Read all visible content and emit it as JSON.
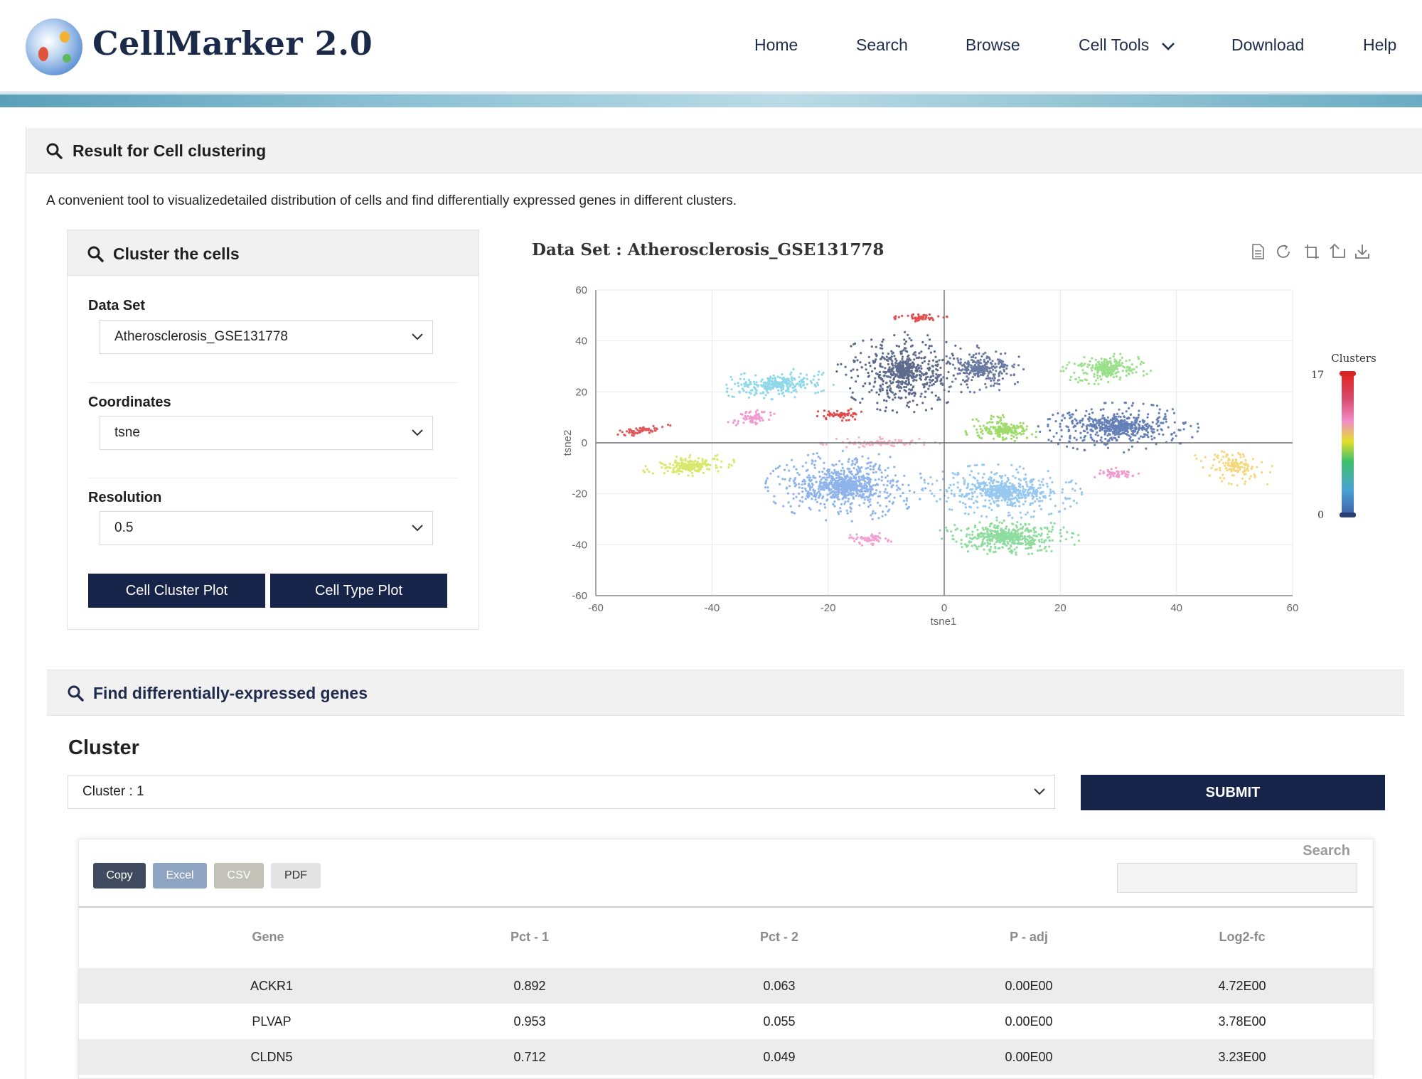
{
  "brand": {
    "name": "CellMarker 2.0"
  },
  "nav": {
    "items": [
      "Home",
      "Search",
      "Browse",
      "Cell Tools",
      "Download",
      "Help"
    ]
  },
  "result": {
    "title": "Result for Cell clustering",
    "description": "A convenient tool to visualizedetailed distribution of cells and find differentially expressed genes in different clusters."
  },
  "cluster_panel": {
    "title": "Cluster the cells",
    "dataset_label": "Data Set",
    "dataset_value": "Atherosclerosis_GSE131778",
    "coordinates_label": "Coordinates",
    "coordinates_value": "tsne",
    "resolution_label": "Resolution",
    "resolution_value": "0.5",
    "btn_cluster_plot": "Cell Cluster Plot",
    "btn_type_plot": "Cell Type Plot"
  },
  "chart_title": "Data Set : Atherosclerosis_GSE131778",
  "chart_data": {
    "type": "scatter",
    "title": "Data Set : Atherosclerosis_GSE131778",
    "xlabel": "tsne1",
    "ylabel": "tsne2",
    "xlim": [
      -60,
      60
    ],
    "ylim": [
      -60,
      60
    ],
    "x_ticks": [
      "-60",
      "-40",
      "-20",
      "0",
      "20",
      "40",
      "60"
    ],
    "y_ticks": [
      "60",
      "40",
      "20",
      "0",
      "-20",
      "-40",
      "-60"
    ],
    "grid": true,
    "legend": {
      "title": "Clusters",
      "min": "0",
      "max": "17",
      "placement": "right"
    },
    "clusters": [
      {
        "color": "#e0595a",
        "cx": -52,
        "cy": 5,
        "rx": 5.5,
        "ry": 1.5,
        "rot": 25,
        "n": 70
      },
      {
        "color": "#d9e86a",
        "cx": -44,
        "cy": -9,
        "rx": 7,
        "ry": 3.5,
        "rot": 15,
        "n": 220
      },
      {
        "color": "#8fd8e8",
        "cx": -29,
        "cy": 23,
        "rx": 9,
        "ry": 5,
        "rot": 10,
        "n": 320
      },
      {
        "color": "#f29ad0",
        "cx": -33,
        "cy": 10,
        "rx": 4,
        "ry": 3,
        "rot": 20,
        "n": 80
      },
      {
        "color": "#e24b4b",
        "cx": -18,
        "cy": 11,
        "rx": 4.5,
        "ry": 2,
        "rot": 5,
        "n": 70
      },
      {
        "color": "#5d6b8c",
        "cx": -7,
        "cy": 28,
        "rx": 10,
        "ry": 14,
        "rot": 0,
        "n": 650
      },
      {
        "color": "#e44f4f",
        "cx": -4,
        "cy": 49,
        "rx": 4,
        "ry": 1.8,
        "rot": 0,
        "n": 60
      },
      {
        "color": "#6b7aa3",
        "cx": 6,
        "cy": 29,
        "rx": 7,
        "ry": 8,
        "rot": 0,
        "n": 300
      },
      {
        "color": "#9fdb6a",
        "cx": 10,
        "cy": 5,
        "rx": 5.5,
        "ry": 6,
        "rot": 0,
        "n": 230
      },
      {
        "color": "#9be08a",
        "cx": 28,
        "cy": 29,
        "rx": 7,
        "ry": 5,
        "rot": 15,
        "n": 280
      },
      {
        "color": "#6680b8",
        "cx": 30,
        "cy": 6,
        "rx": 12,
        "ry": 8.5,
        "rot": 0,
        "n": 650
      },
      {
        "color": "#f29ad0",
        "cx": 29,
        "cy": -12,
        "rx": 5,
        "ry": 2,
        "rot": -10,
        "n": 60
      },
      {
        "color": "#f5d77c",
        "cx": 50,
        "cy": -9,
        "rx": 5,
        "ry": 8,
        "rot": 35,
        "n": 150
      },
      {
        "color": "#8fb4ec",
        "cx": -17,
        "cy": -17,
        "rx": 12,
        "ry": 12,
        "rot": 0,
        "n": 900
      },
      {
        "color": "#f4b6c4",
        "cx": -11,
        "cy": 0,
        "rx": 9,
        "ry": 2,
        "rot": 0,
        "n": 120
      },
      {
        "color": "#97c8ef",
        "cx": 10,
        "cy": -19,
        "rx": 12,
        "ry": 9,
        "rot": -10,
        "n": 650
      },
      {
        "color": "#8fdc9f",
        "cx": 11,
        "cy": -37,
        "rx": 11,
        "ry": 6,
        "rot": 0,
        "n": 520
      },
      {
        "color": "#f2a1d4",
        "cx": -13,
        "cy": -38,
        "rx": 3.5,
        "ry": 2.5,
        "rot": 0,
        "n": 60
      }
    ]
  },
  "deg": {
    "title": "Find differentially-expressed genes",
    "cluster_heading": "Cluster",
    "cluster_select": "Cluster : 1",
    "submit": "SUBMIT",
    "buttons": [
      "Copy",
      "Excel",
      "CSV",
      "PDF"
    ],
    "search_label": "Search",
    "search_value": "",
    "columns": [
      "Gene",
      "Pct - 1",
      "Pct - 2",
      "P - adj",
      "Log2-fc"
    ],
    "rows": [
      [
        "ACKR1",
        "0.892",
        "0.063",
        "0.00E00",
        "4.72E00"
      ],
      [
        "PLVAP",
        "0.953",
        "0.055",
        "0.00E00",
        "3.78E00"
      ],
      [
        "CLDN5",
        "0.712",
        "0.049",
        "0.00E00",
        "3.23E00"
      ]
    ]
  },
  "colors": {
    "navy": "#17244a",
    "btn_copy": "#3f4a5e",
    "btn_excel": "#8fa3c2",
    "btn_csv": "#c2c2b9",
    "btn_pdf": "#e4e4e4"
  }
}
